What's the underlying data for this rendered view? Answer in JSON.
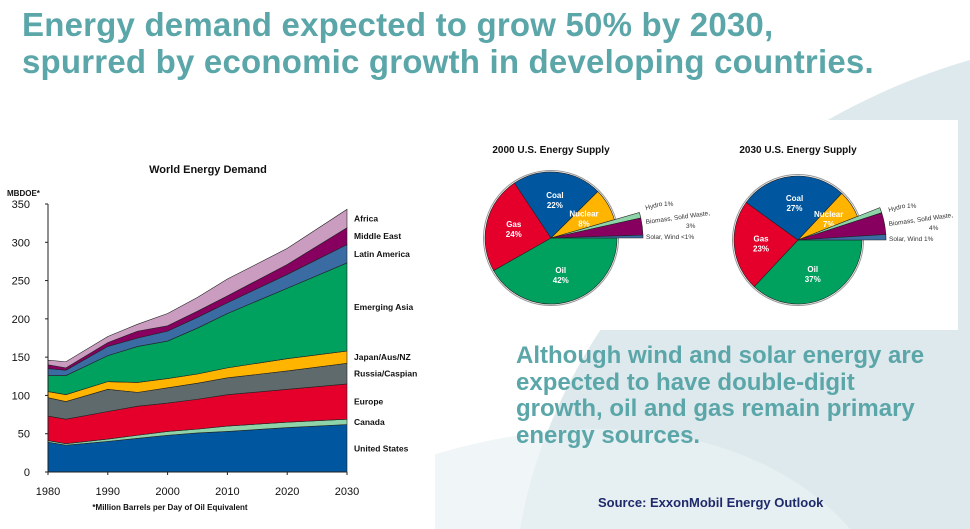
{
  "title": {
    "line1": "Energy demand expected to grow 50% by 2030,",
    "line2": "spurred by economic growth in developing countries."
  },
  "note": "Although wind and solar energy are expected to have double-digit growth, oil and gas remain primary energy sources.",
  "source": "Source: ExxonMobil Energy Outlook",
  "colors": {
    "title": "#5ba6a9",
    "source": "#1f2a6b",
    "background_swoosh": "#dde9ec"
  },
  "chart_data": [
    {
      "type": "area",
      "stacked": true,
      "title": "World Energy Demand",
      "ylabel": "MBDOE*",
      "footnote": "*Million Barrels per Day of Oil Equivalent",
      "ylim": [
        0,
        350
      ],
      "xlim": [
        1980,
        2030
      ],
      "xticks": [
        1980,
        1990,
        2000,
        2010,
        2020,
        2030
      ],
      "yticks": [
        0,
        50,
        100,
        150,
        200,
        250,
        300,
        350
      ],
      "x": [
        1980,
        1983,
        1990,
        1995,
        2000,
        2005,
        2010,
        2020,
        2030
      ],
      "legend": "right-end labels",
      "series": [
        {
          "name": "United States",
          "color": "#0057a0",
          "values": [
            39,
            35,
            40,
            44,
            48,
            51,
            53,
            58,
            62
          ]
        },
        {
          "name": "Canada",
          "color": "#8fd3a8",
          "values": [
            2,
            2,
            3,
            4,
            5,
            5,
            7,
            7,
            7
          ]
        },
        {
          "name": "Europe",
          "color": "#e4002b",
          "values": [
            32,
            32,
            36,
            38,
            37,
            39,
            41,
            43,
            46
          ]
        },
        {
          "name": "Russia/Caspian",
          "color": "#5f6a6d",
          "values": [
            24,
            23,
            29,
            18,
            20,
            21,
            22,
            24,
            27
          ]
        },
        {
          "name": "Japan/Aus/NZ",
          "color": "#ffb400",
          "values": [
            8,
            9,
            10,
            13,
            12,
            12,
            13,
            16,
            16
          ]
        },
        {
          "name": "Emerging Asia",
          "color": "#00a05e",
          "values": [
            21,
            25,
            34,
            47,
            49,
            60,
            71,
            92,
            115
          ]
        },
        {
          "name": "Latin America",
          "color": "#3b6ba3",
          "values": [
            9,
            7,
            12,
            11,
            13,
            14,
            14,
            18,
            24
          ]
        },
        {
          "name": "Middle East",
          "color": "#870060",
          "values": [
            5,
            3,
            5,
            9,
            7,
            8,
            9,
            13,
            22
          ]
        },
        {
          "name": "Africa",
          "color": "#c99cc0",
          "values": [
            6,
            8,
            8,
            9,
            16,
            18,
            22,
            21,
            24
          ]
        }
      ]
    },
    {
      "type": "pie",
      "title": "2000 U.S. Energy Supply",
      "slices": [
        {
          "label": "Oil",
          "pct_label": "42%",
          "value": 42,
          "color": "#00a05e",
          "inside": true
        },
        {
          "label": "Gas",
          "pct_label": "24%",
          "value": 24,
          "color": "#e4002b",
          "inside": true
        },
        {
          "label": "Coal",
          "pct_label": "22%",
          "value": 22,
          "color": "#0057a0",
          "inside": true
        },
        {
          "label": "Nuclear",
          "pct_label": "8%",
          "value": 8,
          "color": "#ffb400",
          "inside": true
        },
        {
          "label": "Hydro",
          "pct_label": "1%",
          "value": 1,
          "color": "#8fd3a8",
          "inside": false
        },
        {
          "label": "Biomass, Solid Waste,",
          "pct_label": "3%",
          "value": 3,
          "color": "#870060",
          "inside": false
        },
        {
          "label": "Solar, Wind",
          "pct_label": "<1%",
          "value": 0.5,
          "color": "#3b6ba3",
          "inside": false
        }
      ]
    },
    {
      "type": "pie",
      "title": "2030 U.S. Energy Supply",
      "slices": [
        {
          "label": "Oil",
          "pct_label": "37%",
          "value": 37,
          "color": "#00a05e",
          "inside": true
        },
        {
          "label": "Gas",
          "pct_label": "23%",
          "value": 23,
          "color": "#e4002b",
          "inside": true
        },
        {
          "label": "Coal",
          "pct_label": "27%",
          "value": 27,
          "color": "#0057a0",
          "inside": true
        },
        {
          "label": "Nuclear",
          "pct_label": "7%",
          "value": 7,
          "color": "#ffb400",
          "inside": true
        },
        {
          "label": "Hydro",
          "pct_label": "1%",
          "value": 1,
          "color": "#8fd3a8",
          "inside": false
        },
        {
          "label": "Biomass, Solid Waste,",
          "pct_label": "4%",
          "value": 4,
          "color": "#870060",
          "inside": false
        },
        {
          "label": "Solar, Wind",
          "pct_label": "1%",
          "value": 1,
          "color": "#3b6ba3",
          "inside": false
        }
      ]
    }
  ]
}
